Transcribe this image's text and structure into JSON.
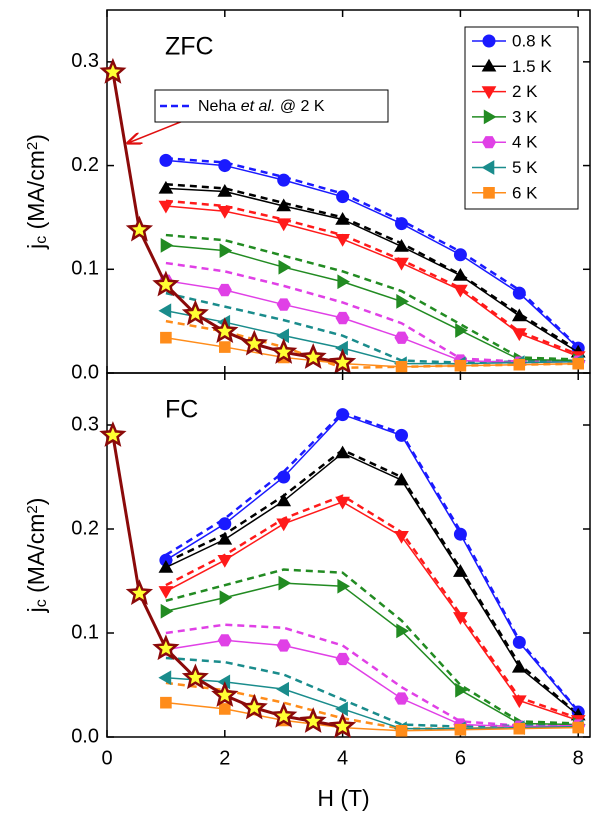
{
  "chart_data": [
    {
      "type": "line",
      "annotation": "ZFC",
      "ylabel": [
        "j",
        "c",
        " (MA/cm",
        "2",
        ")"
      ],
      "xlim": [
        0,
        8.2
      ],
      "ylim": [
        0,
        0.35
      ],
      "yticks": [
        {
          "value": 0,
          "label": "0.0"
        },
        0.1,
        0.2,
        0.3
      ],
      "x": [
        1,
        2,
        3,
        4,
        5,
        6,
        7,
        8
      ],
      "legend_note": {
        "parts": [
          "Neha ",
          "et al.",
          " @ 2 K"
        ],
        "color": "#1a1aff"
      },
      "series": [
        {
          "name": "0.8 K",
          "color": "#1a1aff",
          "marker": "circle",
          "values": [
            0.205,
            0.2,
            0.186,
            0.17,
            0.144,
            0.114,
            0.077,
            0.024
          ]
        },
        {
          "name": "1.5 K",
          "color": "#000000",
          "marker": "triangle-up",
          "values": [
            0.178,
            0.175,
            0.161,
            0.148,
            0.122,
            0.094,
            0.055,
            0.02
          ]
        },
        {
          "name": "2 K",
          "color": "#ff1a1a",
          "marker": "triangle-down",
          "values": [
            0.161,
            0.156,
            0.144,
            0.129,
            0.106,
            0.08,
            0.038,
            0.016
          ]
        },
        {
          "name": "3 K",
          "color": "#228b22",
          "marker": "triangle-right",
          "values": [
            0.123,
            0.118,
            0.102,
            0.088,
            0.069,
            0.041,
            0.013,
            0.012
          ]
        },
        {
          "name": "4 K",
          "color": "#e040e6",
          "marker": "hexagon",
          "values": [
            0.089,
            0.08,
            0.066,
            0.053,
            0.034,
            0.012,
            0.01,
            0.011
          ]
        },
        {
          "name": "5 K",
          "color": "#1a8c8c",
          "marker": "triangle-left",
          "values": [
            0.06,
            0.049,
            0.036,
            0.024,
            0.009,
            0.009,
            0.01,
            0.011
          ]
        },
        {
          "name": "6 K",
          "color": "#ff8c1a",
          "marker": "square",
          "values": [
            0.034,
            0.025,
            0.015,
            0.009,
            0.006,
            0.007,
            0.008,
            0.009
          ]
        }
      ],
      "dashed_series": [
        {
          "color": "#1a1aff",
          "values": [
            0.207,
            0.203,
            0.189,
            0.173,
            0.147,
            0.117,
            0.08,
            0.025
          ]
        },
        {
          "color": "#000000",
          "values": [
            0.182,
            0.178,
            0.164,
            0.15,
            0.125,
            0.095,
            0.057,
            0.022
          ]
        },
        {
          "color": "#ff1a1a",
          "values": [
            0.166,
            0.161,
            0.148,
            0.133,
            0.109,
            0.082,
            0.04,
            0.018
          ]
        },
        {
          "color": "#228b22",
          "values": [
            0.133,
            0.128,
            0.113,
            0.098,
            0.079,
            0.047,
            0.015,
            0.013
          ]
        },
        {
          "color": "#e040e6",
          "values": [
            0.106,
            0.098,
            0.084,
            0.068,
            0.048,
            0.014,
            0.011,
            0.012
          ]
        },
        {
          "color": "#1a8c8c",
          "values": [
            0.077,
            0.064,
            0.051,
            0.036,
            0.012,
            0.01,
            0.011,
            0.012
          ]
        },
        {
          "color": "#ff8c1a",
          "values": [
            0.05,
            0.04,
            0.025,
            0.005,
            0.006,
            0.007,
            0.008,
            0.009
          ]
        }
      ],
      "star_series": {
        "color": "#8b0a0a",
        "fill": "#ffff33",
        "x": [
          0.1,
          0.55,
          1,
          1.5,
          2,
          2.5,
          3,
          3.5,
          4
        ],
        "values": [
          0.29,
          0.138,
          0.085,
          0.057,
          0.04,
          0.028,
          0.02,
          0.015,
          0.01
        ]
      }
    },
    {
      "type": "line",
      "annotation": "FC",
      "ylabel": [
        "j",
        "c",
        " (MA/cm",
        "2",
        ")"
      ],
      "xlabel": "H (T)",
      "xlim": [
        0,
        8.2
      ],
      "ylim": [
        0,
        0.35
      ],
      "xticks": [
        0,
        2,
        4,
        6,
        8
      ],
      "yticks": [
        {
          "value": 0,
          "label": "0.0"
        },
        0.1,
        0.2,
        0.3
      ],
      "x": [
        1,
        2,
        3,
        4,
        5,
        6,
        7,
        8
      ],
      "series": [
        {
          "color": "#1a1aff",
          "marker": "circle",
          "values": [
            0.17,
            0.205,
            0.25,
            0.31,
            0.29,
            0.195,
            0.091,
            0.024
          ]
        },
        {
          "color": "#000000",
          "marker": "triangle-up",
          "values": [
            0.163,
            0.19,
            0.227,
            0.273,
            0.247,
            0.159,
            0.067,
            0.021
          ]
        },
        {
          "color": "#ff1a1a",
          "marker": "triangle-down",
          "values": [
            0.14,
            0.17,
            0.205,
            0.226,
            0.193,
            0.115,
            0.035,
            0.016
          ]
        },
        {
          "color": "#228b22",
          "marker": "triangle-right",
          "values": [
            0.121,
            0.134,
            0.148,
            0.145,
            0.102,
            0.045,
            0.013,
            0.012
          ]
        },
        {
          "color": "#e040e6",
          "marker": "hexagon",
          "values": [
            0.084,
            0.093,
            0.088,
            0.075,
            0.037,
            0.012,
            0.01,
            0.011
          ]
        },
        {
          "color": "#1a8c8c",
          "marker": "triangle-left",
          "values": [
            0.057,
            0.053,
            0.046,
            0.027,
            0.008,
            0.008,
            0.009,
            0.01
          ]
        },
        {
          "color": "#ff8c1a",
          "marker": "square",
          "values": [
            0.033,
            0.027,
            0.016,
            0.009,
            0.006,
            0.007,
            0.008,
            0.009
          ]
        }
      ],
      "dashed_series": [
        {
          "color": "#1a1aff",
          "values": [
            0.175,
            0.21,
            0.255,
            0.312,
            0.292,
            0.198,
            0.093,
            0.025
          ]
        },
        {
          "color": "#000000",
          "values": [
            0.168,
            0.195,
            0.232,
            0.276,
            0.25,
            0.162,
            0.07,
            0.022
          ]
        },
        {
          "color": "#ff1a1a",
          "values": [
            0.146,
            0.175,
            0.21,
            0.232,
            0.197,
            0.118,
            0.038,
            0.018
          ]
        },
        {
          "color": "#228b22",
          "values": [
            0.131,
            0.146,
            0.161,
            0.158,
            0.112,
            0.05,
            0.015,
            0.013
          ]
        },
        {
          "color": "#e040e6",
          "values": [
            0.1,
            0.108,
            0.105,
            0.088,
            0.048,
            0.015,
            0.011,
            0.012
          ]
        },
        {
          "color": "#1a8c8c",
          "values": [
            0.076,
            0.072,
            0.06,
            0.036,
            0.012,
            0.01,
            0.011,
            0.012
          ]
        },
        {
          "color": "#ff8c1a",
          "values": [
            0.052,
            0.045,
            0.033,
            0.018,
            0.008,
            0.008,
            0.009,
            0.01
          ]
        }
      ],
      "star_series": {
        "color": "#8b0a0a",
        "fill": "#ffff33",
        "x": [
          0.1,
          0.55,
          1,
          1.5,
          2,
          2.5,
          3,
          3.5,
          4
        ],
        "values": [
          0.29,
          0.138,
          0.085,
          0.057,
          0.04,
          0.028,
          0.02,
          0.015,
          0.01
        ]
      }
    }
  ]
}
